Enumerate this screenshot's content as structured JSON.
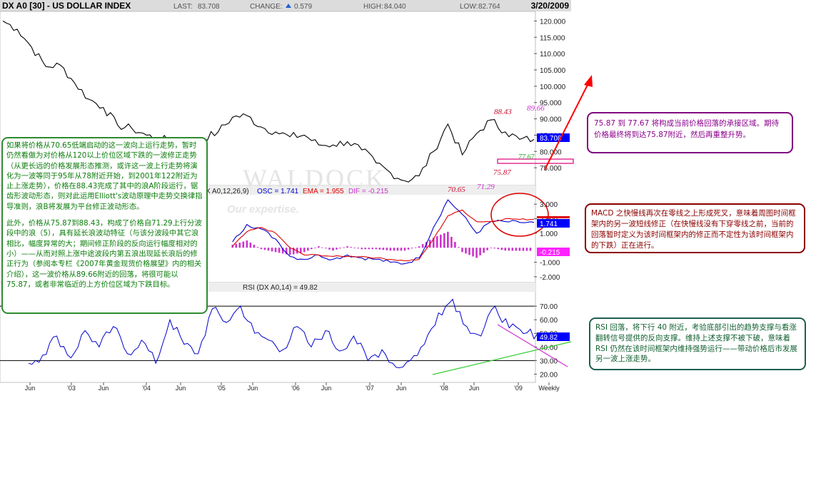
{
  "header": {
    "symbol": "DX A0 [30] - US DOLLAR INDEX",
    "last_label": "LAST:",
    "last_value": "83.708",
    "change_label": "CHANGE:",
    "change_value": "0.579",
    "high_label": "HIGH:",
    "high_value": "84.040",
    "low_label": "LOW:",
    "low_value": "82.764",
    "date": "3/20/2009"
  },
  "watermark": {
    "text": "WALDOCK",
    "sub": "Our expertise."
  },
  "chart_data": [
    {
      "type": "line",
      "panel": "price",
      "ylim": [
        70,
        122.5
      ],
      "yticks": [
        "120.000",
        "115.000",
        "110.000",
        "105.000",
        "100.000",
        "95.000",
        "90.000",
        "85.000",
        "80.000",
        "75.000"
      ],
      "x_months": [
        0,
        6,
        12,
        18,
        24,
        30,
        36,
        42,
        48,
        54,
        60,
        66,
        72,
        78,
        84,
        90,
        96,
        102,
        108,
        111
      ],
      "x": [
        0,
        3,
        6,
        9,
        12,
        15,
        18,
        21,
        24,
        27,
        30,
        33,
        36,
        39,
        42,
        45,
        48,
        51,
        54,
        57,
        60,
        63,
        66,
        69,
        72,
        75,
        78,
        81,
        84,
        87,
        90,
        93,
        96,
        99,
        102,
        105,
        108,
        111
      ],
      "values": [
        120,
        117.5,
        112,
        106,
        106.5,
        101,
        96,
        93.5,
        88,
        87,
        85,
        83.5,
        84,
        82,
        84,
        86,
        90.5,
        91,
        87.5,
        86,
        84.5,
        85,
        82,
        82,
        83,
        80.5,
        76.5,
        73.5,
        71,
        72.5,
        80,
        88.4,
        79,
        85.5,
        89.66,
        86,
        83.7,
        83.7
      ],
      "last_value_label": "83.708",
      "annotations": [
        {
          "text": "88.43",
          "color": "#c8102e"
        },
        {
          "text": "89.66",
          "color": "#d030d0"
        },
        {
          "text": "77.67",
          "color": "#2aa02a"
        },
        {
          "text": "75.87",
          "color": "#c8102e"
        },
        {
          "text": "70.65",
          "color": "#c8102e"
        },
        {
          "text": "71.29",
          "color": "#d030d0"
        }
      ]
    },
    {
      "type": "line",
      "panel": "macd",
      "title_prefix": "X A0,12,26,9)",
      "osc_label": "OSC = 1.741",
      "ema_label": "EMA = 1.955",
      "dif_label": "DIF = -0.215",
      "ylim": [
        -2.3,
        3.6
      ],
      "yticks": [
        "3.000",
        "2.000",
        "1.000",
        "-1.000",
        "-2.000"
      ],
      "x": [
        48,
        51,
        54,
        57,
        60,
        63,
        66,
        69,
        72,
        75,
        78,
        81,
        84,
        87,
        90,
        93,
        96,
        99,
        102,
        105,
        108,
        111
      ],
      "series": [
        {
          "name": "OSC",
          "color": "#0000cc",
          "values": [
            0.4,
            1.6,
            1.3,
            0.6,
            -0.6,
            -0.8,
            -0.5,
            -0.8,
            -0.5,
            -0.7,
            -0.8,
            -1.0,
            -1.1,
            -0.7,
            1.4,
            3.3,
            2.3,
            1.0,
            1.8,
            1.8,
            1.741,
            1.741
          ]
        },
        {
          "name": "EMA",
          "color": "#dd0000",
          "values": [
            0.1,
            1.1,
            1.4,
            1.0,
            0.0,
            -0.5,
            -0.5,
            -0.6,
            -0.6,
            -0.6,
            -0.7,
            -0.8,
            -0.9,
            -0.8,
            0.6,
            2.2,
            2.6,
            1.8,
            1.8,
            2.0,
            1.955,
            1.955
          ]
        }
      ],
      "histogram": {
        "name": "DIF",
        "color": "#cc33cc",
        "values": [
          0.2,
          0.5,
          -0.1,
          -0.3,
          -0.5,
          -0.3,
          0.1,
          -0.2,
          0.1,
          -0.1,
          -0.1,
          -0.2,
          -0.2,
          0.1,
          0.7,
          1.1,
          -0.3,
          -0.7,
          0.0,
          -0.2,
          -0.215,
          -0.215
        ]
      },
      "value_labels": [
        "1.741",
        "-0.215"
      ]
    },
    {
      "type": "line",
      "panel": "rsi",
      "title": "RSI (DX A0,14) = 49.82",
      "ylim": [
        15,
        80
      ],
      "yticks": [
        "70.00",
        "60.00",
        "50.00",
        "40.00",
        "30.00",
        "20.00"
      ],
      "reference_lines": [
        70,
        30
      ],
      "x": [
        0,
        3,
        6,
        9,
        12,
        15,
        18,
        21,
        24,
        27,
        30,
        33,
        36,
        39,
        42,
        45,
        48,
        51,
        54,
        57,
        60,
        63,
        66,
        69,
        72,
        75,
        78,
        81,
        84,
        87,
        90,
        93,
        96,
        99,
        102,
        105,
        108,
        111
      ],
      "values": [
        44,
        28,
        34,
        48,
        32,
        52,
        40,
        55,
        35,
        45,
        28,
        60,
        42,
        35,
        68,
        58,
        70,
        50,
        45,
        38,
        55,
        40,
        52,
        37,
        48,
        30,
        38,
        25,
        30,
        42,
        65,
        75,
        55,
        48,
        70,
        54,
        49.82,
        49.82
      ],
      "value_label": "49.82"
    }
  ],
  "x_axis": {
    "labels": [
      "Jun",
      "'03",
      "Jun",
      "'04",
      "Jun",
      "'05",
      "Jun",
      "'06",
      "Jun",
      "'07",
      "Jun",
      "'08",
      "Jun",
      "'09",
      "Weekly"
    ]
  },
  "notes": {
    "left_p1": "如果将价格从70.65低端启动的这一波向上运行走势，暂时仍然看做为对价格从120以上价位区域下跌的一波修正走势（从更长远的价格发展形态推测，或许这一波上行走势将演化为一波等同于95年从78附近开始，到2001年122附近为止上涨走势），价格在88.43完成了其中的浪A阶段运行，锯齿形波动形态，则对此运用Elliott's波动原理中走势交换律指导准则，浪B将发展为平台修正波动形态。",
    "left_p2": "此外，价格从75.87到88.43，构成了价格自71.29上行分波段中的浪（5），具有延长浪波动特征（与该分波段中其它浪相比，幅度异常的大；期间修正阶段的反向运行幅度相对的小）——从而对照上涨中途波段内第五浪出现延长浪后的修正行为（参阅本专栏《2007年黄金现货价格展望》内的相关介绍），这一波价格从89.66附近的回落，将很可能以75.87，或者非常临近的上方价位区域为下跌目标。",
    "support": "75.87 到 77.67 将构成当前价格回落的承接区域。期待价格最终将到达75.87附近，然后再重整升势。",
    "macd": "MACD 之快慢线再次在零线之上形成死叉，意味着周图时间框架内的另一波短线修正（在快慢线没有下穿零线之前，当前的回落暂时定义为该时间框架内的修正而不定性为该时间框架内的下跌）正在进行。",
    "rsi": "RSI 回落，将下行 40 附近，考验底部引出的趋势支撑与看涨翻转信号提供的反向支撑。维持上述支撑不被下破，意味着RSI 仍然在该时间框架内维持强势运行——带动价格后市发展另一波上涨走势。"
  },
  "colors": {
    "price_line": "#000000",
    "last_badge": "#0000ff",
    "support_rect": "#e0007a",
    "macd_circle": "#dd0000",
    "arrow": "#ff0000",
    "rsi_trend_up": "#33cc33",
    "rsi_trend_down": "#d030d0"
  }
}
